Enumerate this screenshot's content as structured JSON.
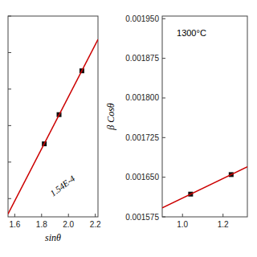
{
  "chart_data": [
    {
      "type": "scatter",
      "x_label": "sinθ",
      "annotation": "1.54E-4",
      "xlim": [
        1.55,
        2.22
      ],
      "ylim": [
        0.00155,
        0.0021
      ],
      "xticks": [
        1.6,
        1.8,
        {
          "value": 2,
          "label": "2.0"
        },
        2.2
      ],
      "yticks": [
        0.0016,
        0.0017,
        0.0018,
        0.0019,
        0.002,
        0.0021
      ],
      "tick_labels": "x",
      "grid": false,
      "series": [
        {
          "type": "scatter",
          "marker": "square",
          "color": "#111111",
          "x": [
            1.82,
            1.93,
            2.1
          ],
          "values": [
            0.00175,
            0.00183,
            0.00195
          ]
        },
        {
          "type": "line",
          "line_style": "solid",
          "color": "#cc0000",
          "x": [
            1.55,
            2.22
          ],
          "values": [
            0.0015579,
            0.002036
          ]
        }
      ]
    },
    {
      "type": "scatter",
      "y_label": "β Cosθ",
      "annotation": "1300°C",
      "xlim": [
        0.9,
        1.32
      ],
      "ylim": [
        0.001575,
        0.001955
      ],
      "xticks": [
        {
          "value": 1,
          "label": "1.0"
        },
        1.2
      ],
      "yticks": [
        0.001575,
        {
          "value": 0.00165,
          "label": "0.001650"
        },
        0.001725,
        {
          "value": 0.0018,
          "label": "0.001800"
        },
        0.001875,
        {
          "value": 0.00195,
          "label": "0.001950"
        }
      ],
      "tick_labels": true,
      "grid": false,
      "series": [
        {
          "type": "scatter",
          "marker": "square",
          "color": "#111111",
          "x": [
            1.04,
            1.24
          ],
          "values": [
            0.001618,
            0.001655
          ]
        },
        {
          "type": "line",
          "line_style": "solid",
          "color": "#cc0000",
          "x": [
            0.9,
            1.32
          ],
          "values": [
            0.0015921,
            0.0016698
          ]
        }
      ]
    }
  ]
}
